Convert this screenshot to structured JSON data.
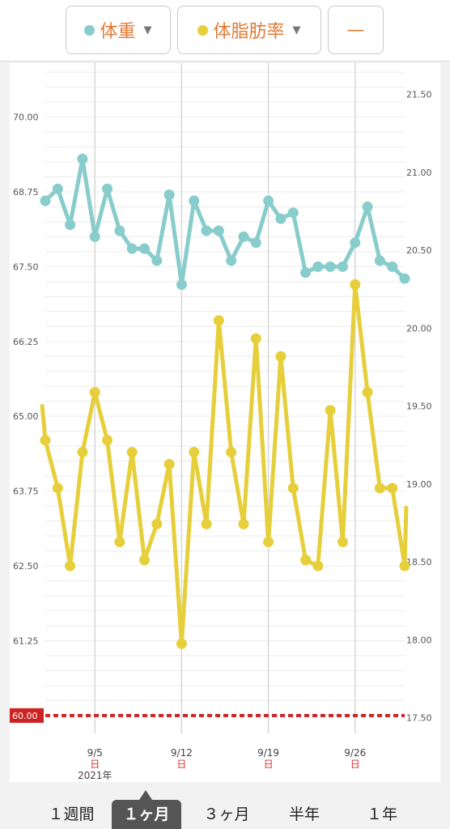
{
  "header": {
    "selectors": [
      {
        "label": "体重",
        "dot_color": "#88cccc",
        "icon": "caret-down-icon",
        "caret": "▼"
      },
      {
        "label": "体脂肪率",
        "dot_color": "#e6cf3a",
        "icon": "caret-down-icon",
        "caret": "▼"
      },
      {
        "label": "—"
      }
    ]
  },
  "chart_data": {
    "type": "line",
    "target_label": "60.00",
    "target_value": 60.0,
    "target_color": "#cc2222",
    "left_axis": {
      "ticks": [
        "70.00",
        "68.75",
        "67.50",
        "66.25",
        "65.00",
        "63.75",
        "62.50",
        "61.25"
      ],
      "range": [
        59.7,
        70.9
      ]
    },
    "right_axis": {
      "ticks": [
        "21.50",
        "21.00",
        "20.50",
        "20.00",
        "19.50",
        "19.00",
        "18.50",
        "18.00",
        "17.50"
      ],
      "range": [
        17.4,
        21.7
      ]
    },
    "x_labels": [
      {
        "date": "9/5",
        "day": "日",
        "year": "2021年",
        "x": 5
      },
      {
        "date": "9/12",
        "day": "日",
        "year": "",
        "x": 12
      },
      {
        "date": "9/19",
        "day": "日",
        "year": "",
        "x": 19
      },
      {
        "date": "9/26",
        "day": "日",
        "year": "",
        "x": 26
      }
    ],
    "x": [
      1,
      2,
      3,
      4,
      5,
      6,
      7,
      8,
      9,
      10,
      11,
      12,
      13,
      14,
      15,
      16,
      17,
      18,
      19,
      20,
      21,
      22,
      23,
      24,
      25,
      26,
      27,
      28,
      29,
      30
    ],
    "series": [
      {
        "name": "体重",
        "color": "#88cccc",
        "axis": "left",
        "values": [
          68.6,
          68.8,
          68.2,
          69.3,
          68.0,
          68.8,
          68.1,
          67.8,
          67.8,
          67.6,
          68.7,
          67.2,
          68.6,
          68.1,
          68.1,
          67.6,
          68.0,
          67.9,
          68.6,
          68.3,
          68.4,
          67.4,
          67.5,
          67.5,
          67.5,
          67.9,
          68.5,
          67.6,
          67.5,
          67.3
        ]
      },
      {
        "name": "体脂肪率",
        "color": "#e6cf3a",
        "axis": "left",
        "values": [
          64.6,
          63.8,
          62.5,
          64.4,
          65.4,
          64.6,
          62.9,
          64.4,
          62.6,
          63.2,
          64.2,
          61.2,
          64.4,
          63.2,
          66.6,
          64.4,
          63.2,
          66.3,
          62.9,
          66.0,
          63.8,
          62.6,
          62.5,
          65.1,
          62.9,
          67.2,
          65.4,
          63.8,
          63.8,
          62.5
        ]
      }
    ],
    "x_edge_values": {
      "weight_before": 68.6,
      "fat_before": 65.2,
      "fat_after": 63.5
    }
  },
  "tabs": {
    "items": [
      "１週間",
      "１ヶ月",
      "３ヶ月",
      "半年",
      "１年"
    ],
    "active_index": 1
  }
}
